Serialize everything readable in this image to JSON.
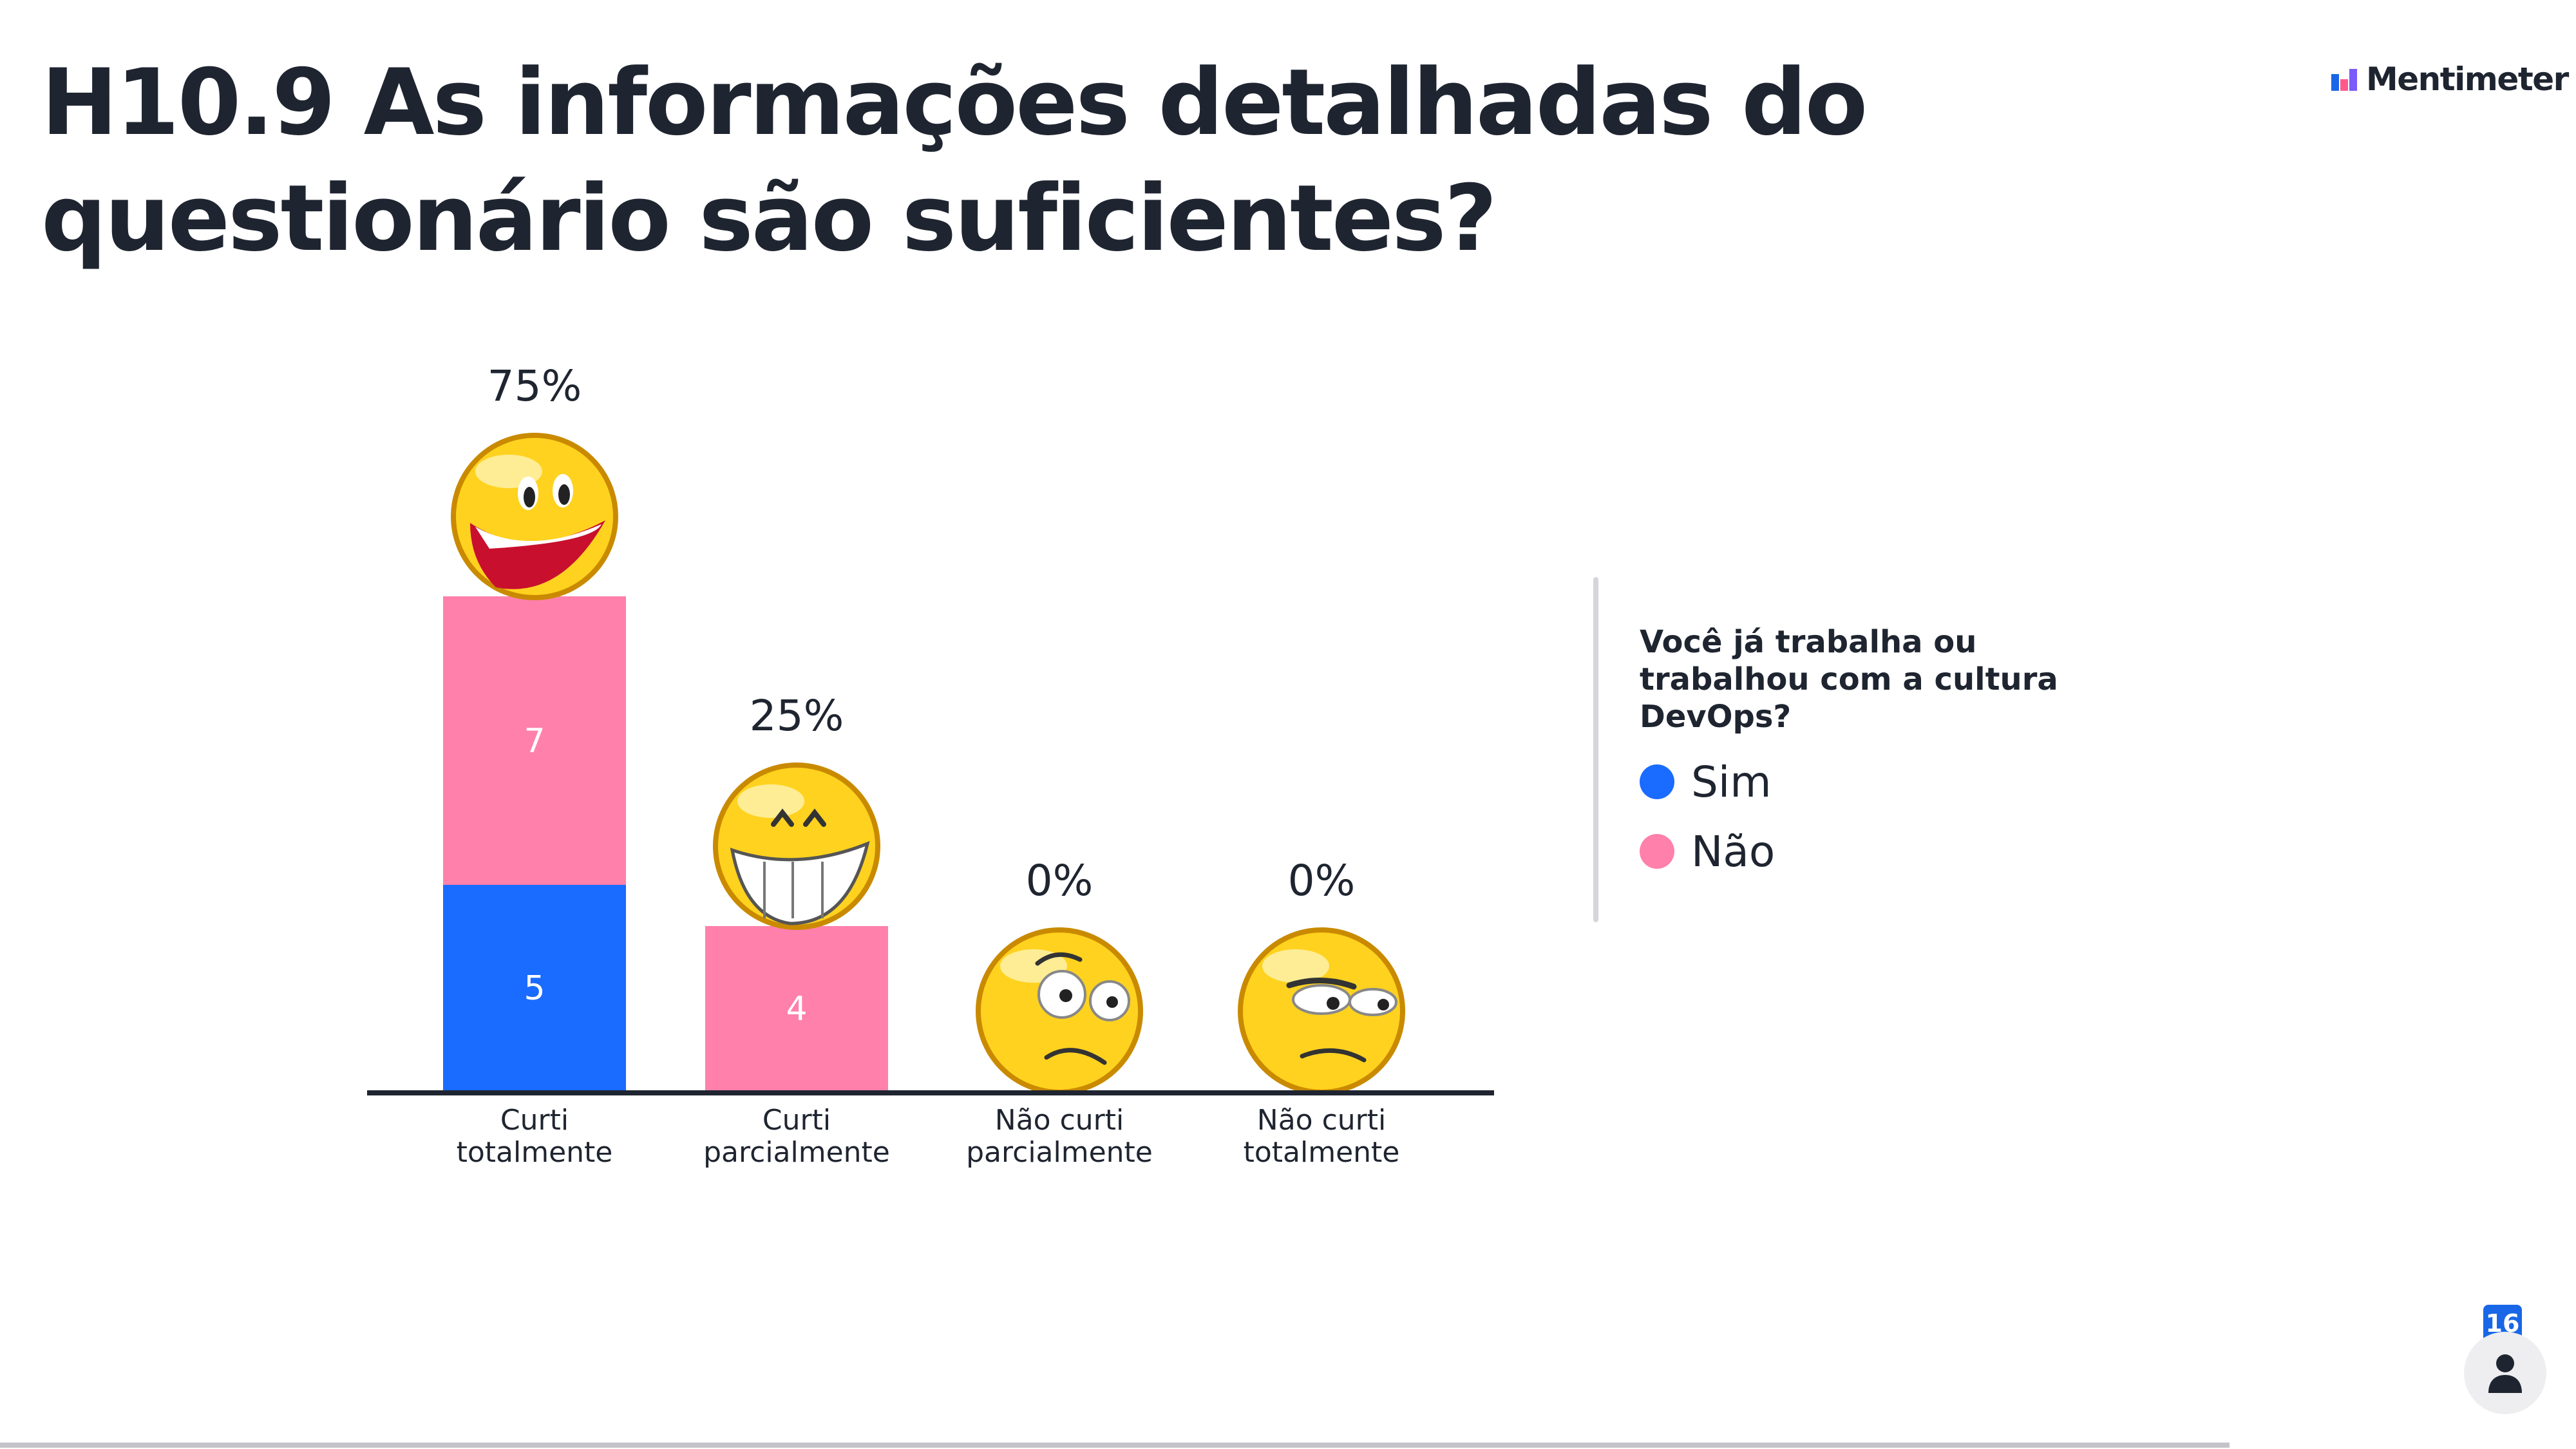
{
  "slide": {
    "title": "H10.9 As informações detalhadas do questionário são suficientes?"
  },
  "brand": {
    "name": "Mentimeter",
    "logo_colors": [
      "#1967e6",
      "#ff5a8c",
      "#7a5af8"
    ]
  },
  "chart_data": {
    "type": "bar",
    "stacked": true,
    "categories": [
      "Curti totalmente",
      "Curti parcialmente",
      "Não curti parcialmente",
      "Não curti totalmente"
    ],
    "category_lines": [
      [
        "Curti",
        "totalmente"
      ],
      [
        "Curti",
        "parcialmente"
      ],
      [
        "Não curti",
        "parcialmente"
      ],
      [
        "Não curti",
        "totalmente"
      ]
    ],
    "percent_labels": [
      "75%",
      "25%",
      "0%",
      "0%"
    ],
    "icons": [
      "big-laugh-emoji",
      "grin-emoji",
      "worried-emoji",
      "annoyed-emoji"
    ],
    "series": [
      {
        "name": "Sim",
        "color": "#1a6bff",
        "values": [
          5,
          0,
          0,
          0
        ]
      },
      {
        "name": "Não",
        "color": "#ff80ab",
        "values": [
          7,
          4,
          0,
          0
        ]
      }
    ],
    "ylim": [
      0,
      12
    ],
    "grid": false,
    "legend_placement": "right"
  },
  "legend": {
    "title": "Você já trabalha ou trabalhou com a cultura DevOps?"
  },
  "participants": {
    "count": "16",
    "icon": "person-icon"
  },
  "colors": {
    "title": "#1f2530",
    "axis": "#1f2530",
    "emoji_face": "#ffd21f",
    "emoji_outline": "#c98a00"
  }
}
